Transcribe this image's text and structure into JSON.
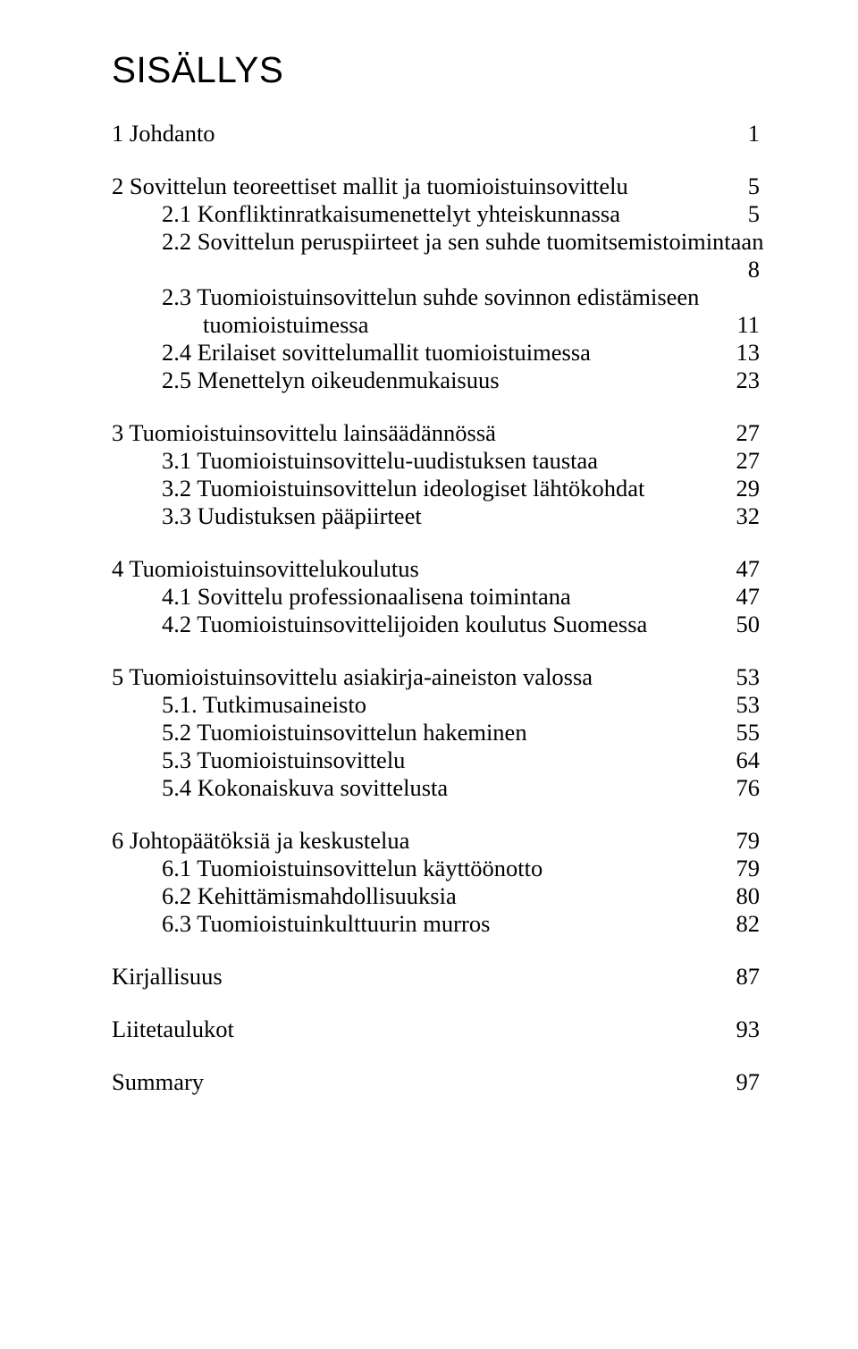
{
  "title": "SISÄLLYS",
  "font": {
    "body_family": "Times New Roman",
    "body_size_pt": 20,
    "title_family": "Arial",
    "title_size_pt": 30
  },
  "colors": {
    "text": "#000000",
    "background": "#ffffff"
  },
  "toc": [
    {
      "type": "block",
      "items": [
        {
          "label": "1 Johdanto",
          "page": "1",
          "indent": 0
        }
      ]
    },
    {
      "type": "block",
      "items": [
        {
          "label": "2 Sovittelun teoreettiset mallit ja tuomioistuinsovittelu",
          "page": "5",
          "indent": 0
        },
        {
          "label": "2.1 Konfliktinratkaisumenettelyt yhteiskunnassa",
          "page": "5",
          "indent": 1
        },
        {
          "label_line1": "2.2 Sovittelun peruspiirteet ja sen suhde tuomitsemistoimintaan",
          "label_line2": "",
          "page": "8",
          "indent": 1,
          "wrap": true
        },
        {
          "label_line1": "2.3 Tuomioistuinsovittelun suhde sovinnon edistämiseen",
          "label_line2": "tuomioistuimessa",
          "page": "11",
          "indent": 1,
          "wrap": true
        },
        {
          "label": "2.4 Erilaiset sovittelumallit tuomioistuimessa",
          "page": "13",
          "indent": 1
        },
        {
          "label": "2.5 Menettelyn oikeudenmukaisuus",
          "page": "23",
          "indent": 1
        }
      ]
    },
    {
      "type": "block",
      "items": [
        {
          "label": "3 Tuomioistuinsovittelu lainsäädännössä",
          "page": "27",
          "indent": 0
        },
        {
          "label": "3.1 Tuomioistuinsovittelu-uudistuksen taustaa",
          "page": "27",
          "indent": 1
        },
        {
          "label": "3.2 Tuomioistuinsovittelun ideologiset lähtökohdat",
          "page": "29",
          "indent": 1
        },
        {
          "label": "3.3 Uudistuksen pääpiirteet",
          "page": "32",
          "indent": 1
        }
      ]
    },
    {
      "type": "block",
      "items": [
        {
          "label": "4 Tuomioistuinsovittelukoulutus",
          "page": "47",
          "indent": 0
        },
        {
          "label": "4.1 Sovittelu professionaalisena toimintana",
          "page": "47",
          "indent": 1
        },
        {
          "label": "4.2 Tuomioistuinsovittelijoiden koulutus Suomessa",
          "page": "50",
          "indent": 1
        }
      ]
    },
    {
      "type": "block",
      "items": [
        {
          "label": "5 Tuomioistuinsovittelu asiakirja-aineiston valossa",
          "page": "53",
          "indent": 0
        },
        {
          "label": "5.1. Tutkimusaineisto",
          "page": "53",
          "indent": 1
        },
        {
          "label": "5.2 Tuomioistuinsovittelun hakeminen",
          "page": "55",
          "indent": 1
        },
        {
          "label": "5.3 Tuomioistuinsovittelu",
          "page": "64",
          "indent": 1
        },
        {
          "label": "5.4 Kokonaiskuva sovittelusta",
          "page": "76",
          "indent": 1
        }
      ]
    },
    {
      "type": "block",
      "items": [
        {
          "label": "6 Johtopäätöksiä ja keskustelua",
          "page": "79",
          "indent": 0
        },
        {
          "label": "6.1 Tuomioistuinsovittelun käyttöönotto",
          "page": "79",
          "indent": 1
        },
        {
          "label": "6.2 Kehittämismahdollisuuksia",
          "page": "80",
          "indent": 1
        },
        {
          "label": "6.3 Tuomioistuinkulttuurin murros",
          "page": "82",
          "indent": 1
        }
      ]
    },
    {
      "type": "block",
      "items": [
        {
          "label": "Kirjallisuus",
          "page": "87",
          "indent": 0
        }
      ]
    },
    {
      "type": "block",
      "items": [
        {
          "label": "Liitetaulukot",
          "page": "93",
          "indent": 0
        }
      ]
    },
    {
      "type": "block",
      "items": [
        {
          "label": "Summary",
          "page": "97",
          "indent": 0
        }
      ]
    }
  ]
}
